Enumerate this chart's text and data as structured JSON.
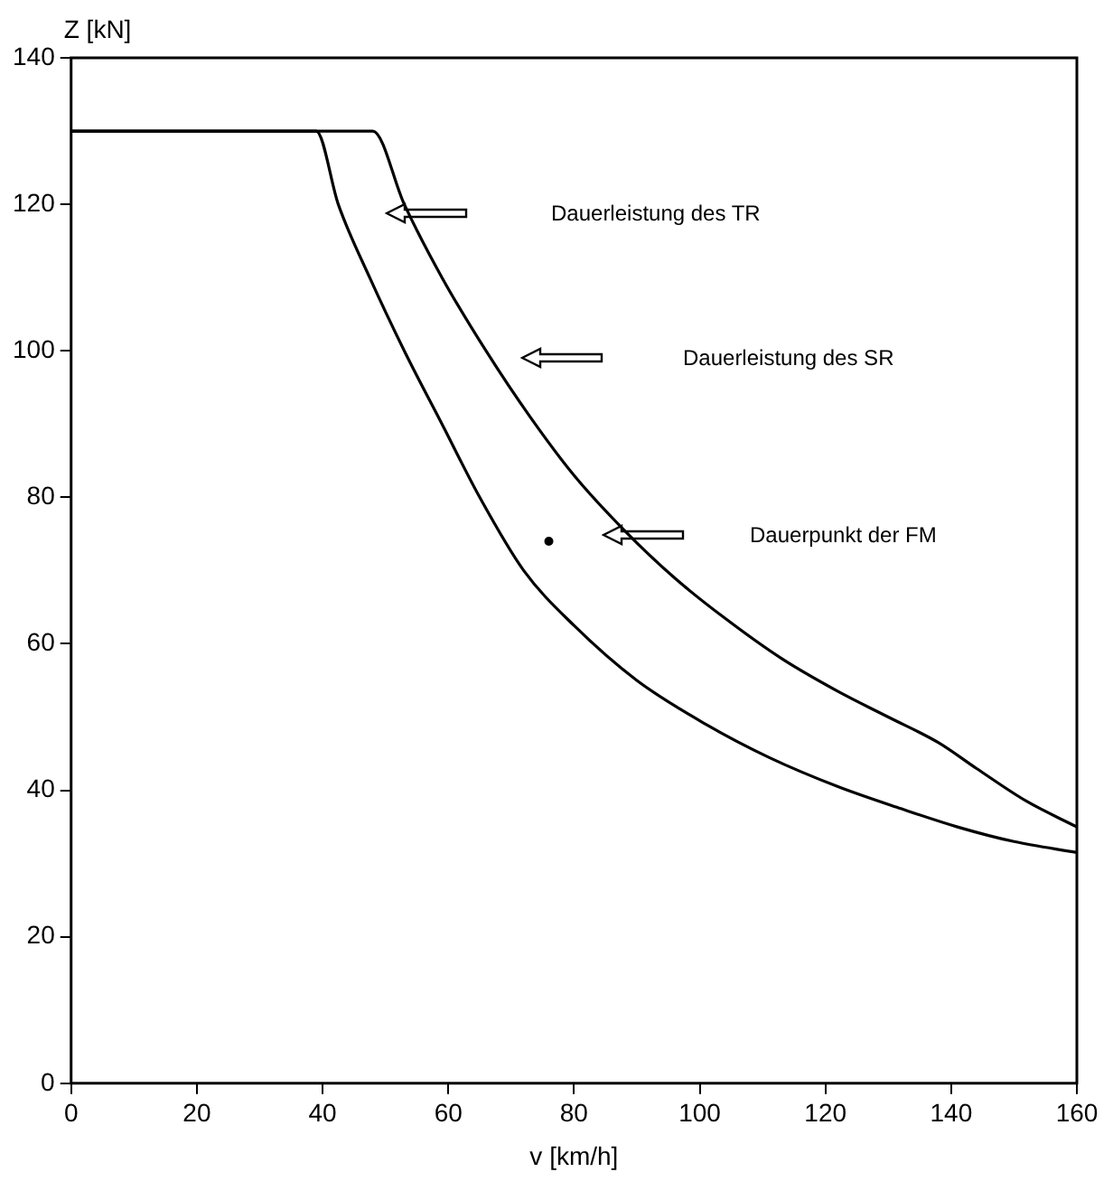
{
  "chart_data": {
    "type": "line",
    "xlabel": "v [km/h]",
    "ylabel": "Z [kN]",
    "xlim": [
      0,
      160
    ],
    "xticks": [
      0,
      20,
      40,
      60,
      80,
      100,
      120,
      140,
      160
    ],
    "ylim": [
      0,
      140
    ],
    "yticks": [
      0,
      20,
      40,
      60,
      80,
      100,
      120,
      140
    ],
    "grid": false,
    "legend": false,
    "marker": "none",
    "line_style": "solid",
    "series": [
      {
        "color": "#000000",
        "x": [
          0,
          39,
          42.5,
          47.5,
          53,
          59,
          65,
          72,
          80,
          90,
          101,
          111,
          122,
          132,
          141,
          150,
          160
        ],
        "values": [
          130,
          130,
          120,
          110,
          100,
          90,
          80,
          70,
          62.5,
          55,
          49,
          44.5,
          40.5,
          37.5,
          35,
          33,
          31.5
        ]
      },
      {
        "color": "#000000",
        "x": [
          0,
          48,
          53,
          59,
          66,
          73,
          80,
          88,
          96,
          104,
          113,
          122,
          130,
          138,
          144,
          152,
          160
        ],
        "values": [
          130,
          130,
          120,
          110,
          100,
          91,
          83,
          75.5,
          69,
          63.5,
          58,
          53.5,
          50,
          46.5,
          43,
          38.5,
          35
        ]
      },
      {
        "type": "scatter",
        "marker": "circle",
        "color": "#000000",
        "x": [
          76
        ],
        "values": [
          74
        ]
      }
    ],
    "annotations": [
      "Dauerleistung des TR",
      "Dauerleistung des SR",
      "Dauerpunkt der FM"
    ]
  }
}
